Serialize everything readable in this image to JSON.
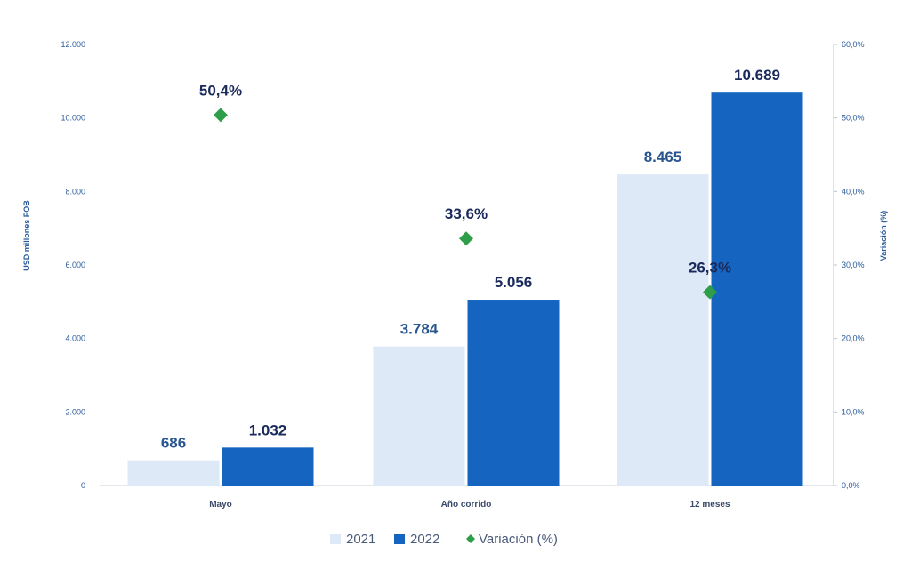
{
  "chart_data": {
    "type": "bar",
    "categories": [
      "Mayo",
      "Año corrido",
      "12 meses"
    ],
    "series": [
      {
        "name": "2021",
        "values": [
          686,
          3784,
          8465
        ],
        "labels": [
          "686",
          "3.784",
          "8.465"
        ],
        "color": "#dde9f7",
        "label_color": "#2a5690"
      },
      {
        "name": "2022",
        "values": [
          1032,
          5056,
          10689
        ],
        "labels": [
          "1.032",
          "5.056",
          "10.689"
        ],
        "color": "#1565c0",
        "label_color": "#1b2a5c"
      }
    ],
    "secondary_series": {
      "name": "Variación (%)",
      "type": "scatter",
      "marker": "diamond",
      "values": [
        50.4,
        33.6,
        26.3
      ],
      "labels": [
        "50,4%",
        "33,6%",
        "26,3%"
      ],
      "color": "#2e9e4a"
    },
    "ylabel": "USD millones FOB",
    "y2label": "Variación (%)",
    "ylim": [
      0,
      12000
    ],
    "y2lim": [
      0,
      60
    ],
    "y_ticks": [
      "0",
      "2.000",
      "4.000",
      "6.000",
      "8.000",
      "10.000",
      "12.000"
    ],
    "y2_ticks": [
      "0,0%",
      "10,0%",
      "20,0%",
      "30,0%",
      "40,0%",
      "50,0%",
      "60,0%"
    ],
    "grid": false,
    "legend_position": "bottom"
  }
}
